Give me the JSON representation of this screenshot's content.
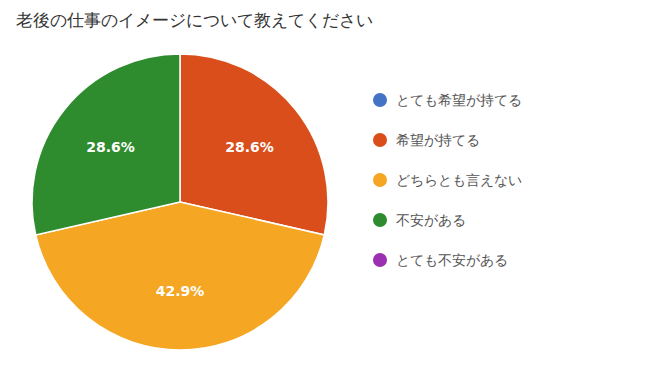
{
  "chart_data": {
    "type": "pie",
    "title": "老後の仕事のイメージについて教えてください",
    "categories": [
      "とても希望が持てる",
      "希望が持てる",
      "どちらとも言えない",
      "不安がある",
      "とても不安がある"
    ],
    "values": [
      null,
      28.6,
      42.9,
      28.6,
      null
    ],
    "value_labels": [
      null,
      "28.6%",
      "42.9%",
      "28.6%",
      null
    ],
    "colors": [
      "#4472C4",
      "#D94E1A",
      "#F5A623",
      "#2E8B2E",
      "#9B30B0"
    ],
    "data_labels": true,
    "legend": "right"
  }
}
